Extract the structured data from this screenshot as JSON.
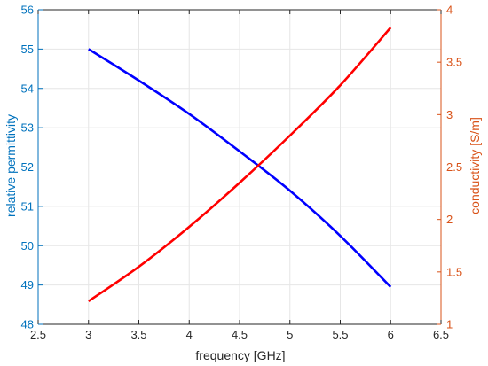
{
  "chart_data": {
    "type": "line",
    "xlabel": "frequency [GHz]",
    "ylabel_left": "relative permittivity",
    "ylabel_right": "conductivity [S/m]",
    "xlim": [
      2.5,
      6.5
    ],
    "ylim_left": [
      48,
      56
    ],
    "ylim_right": [
      1,
      4
    ],
    "x_ticks": [
      "2.5",
      "3",
      "3.5",
      "4",
      "4.5",
      "5",
      "5.5",
      "6",
      "6.5"
    ],
    "y_left_ticks": [
      "48",
      "49",
      "50",
      "51",
      "52",
      "53",
      "54",
      "55",
      "56"
    ],
    "y_right_ticks": [
      "1",
      "1.5",
      "2",
      "2.5",
      "3",
      "3.5",
      "4"
    ],
    "grid": true,
    "colors": {
      "left_axis": "#0072BD",
      "right_axis": "#D95319",
      "permittivity_line": "#0000FF",
      "conductivity_line": "#FF0000"
    },
    "series": [
      {
        "key": "permittivity",
        "axis": "left",
        "x": [
          3,
          3.5,
          4,
          4.5,
          5,
          5.5,
          6
        ],
        "values": [
          55.0,
          54.2,
          53.35,
          52.4,
          51.4,
          50.25,
          48.95
        ]
      },
      {
        "key": "conductivity",
        "axis": "right",
        "x": [
          3,
          3.5,
          4,
          4.5,
          5,
          5.5,
          6
        ],
        "values": [
          1.22,
          1.55,
          1.93,
          2.35,
          2.8,
          3.28,
          3.83
        ]
      }
    ]
  }
}
